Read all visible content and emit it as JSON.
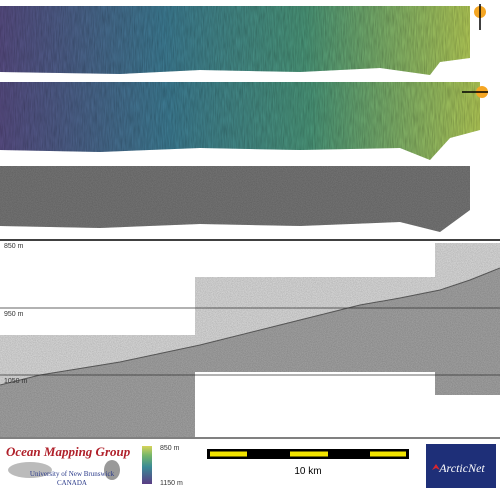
{
  "profile": {
    "depth_labels": [
      "850 m",
      "950 m",
      "1050 m"
    ]
  },
  "footer": {
    "logo_left": {
      "title": "Ocean Mapping Group",
      "subtitle": "University of New Brunswick",
      "country": "CANADA"
    },
    "color_bar": {
      "top_label": "850 m",
      "bottom_label": "1150 m"
    },
    "scale_bar": {
      "label": "10 km"
    },
    "logo_right": {
      "text": "ArcticNet"
    }
  }
}
